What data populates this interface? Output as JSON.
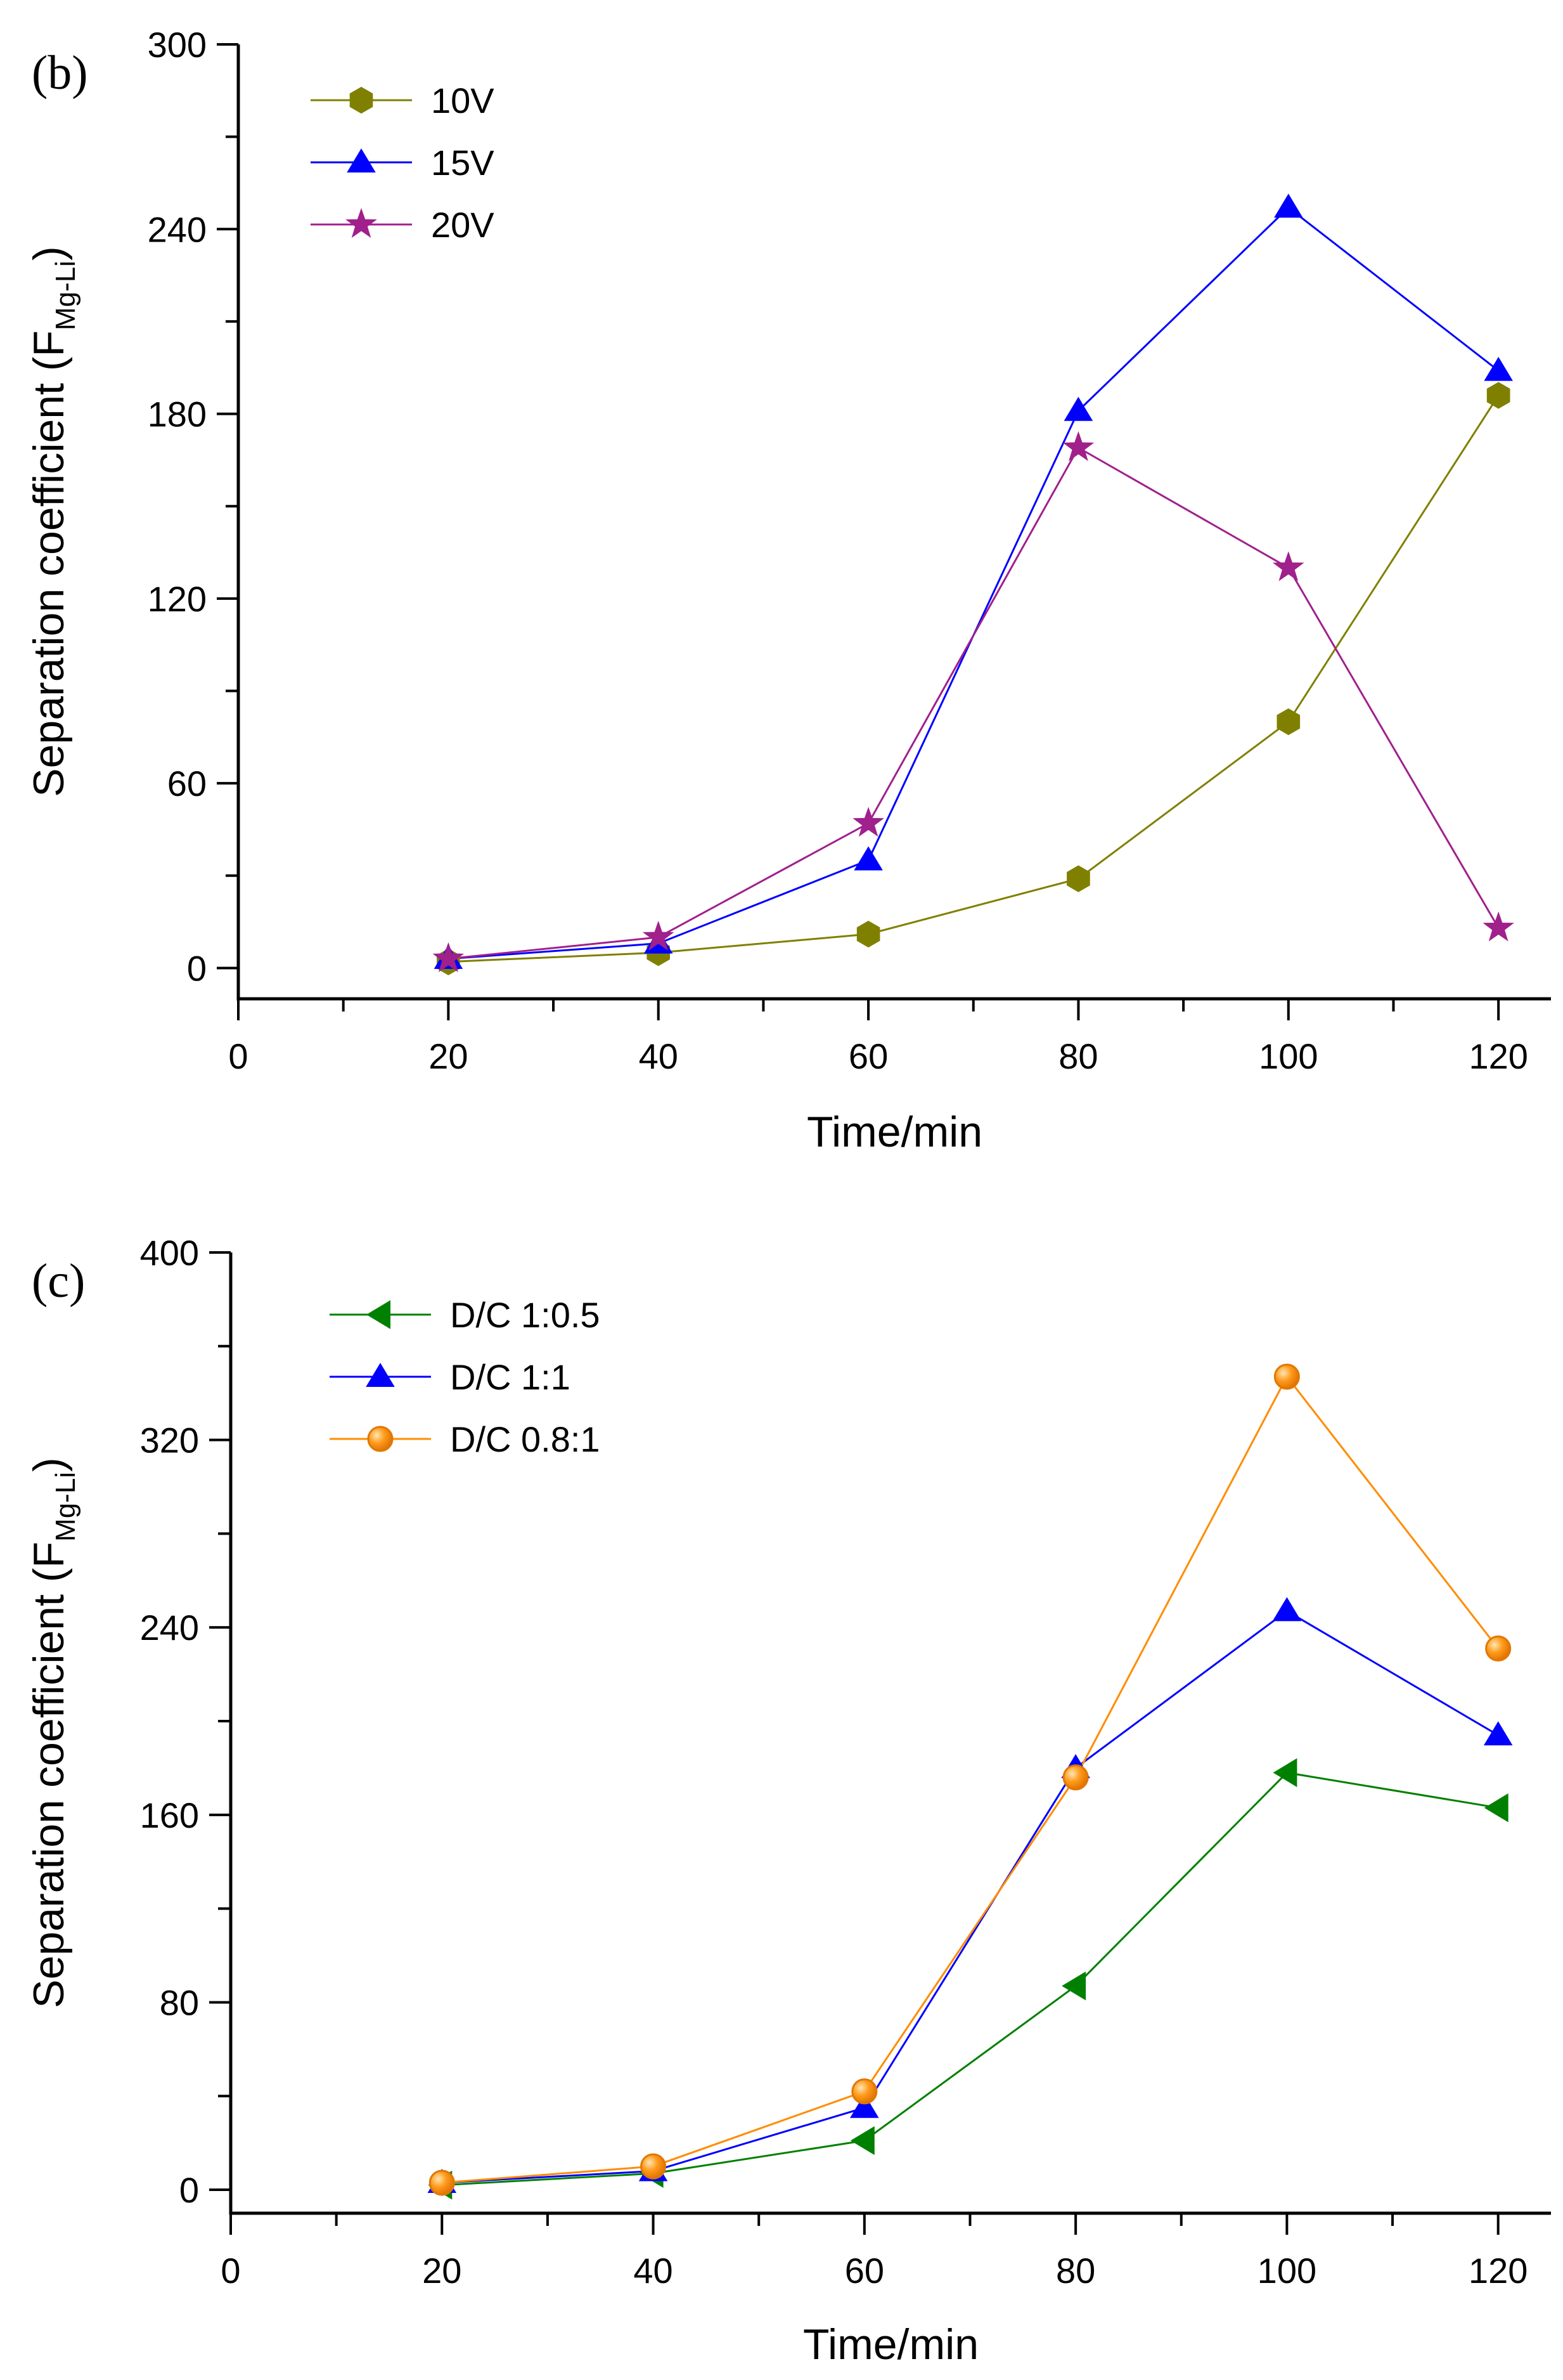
{
  "chart_data": [
    {
      "type": "line",
      "panel_label": "(b)",
      "xlabel": "Time/min",
      "ylabel": "Separation coefficient (F",
      "ylabel_subscript": "Mg-Li",
      "ylabel_close": ")",
      "xlim": [
        0,
        125
      ],
      "ylim": [
        -10,
        300
      ],
      "xticks": [
        0,
        20,
        40,
        60,
        80,
        100,
        120
      ],
      "yticks": [
        0,
        60,
        120,
        180,
        240,
        300
      ],
      "x": [
        20,
        40,
        60,
        80,
        100,
        120
      ],
      "legend_position": "top-left",
      "series": [
        {
          "name": "10V",
          "marker": "hexagon",
          "color": "#808000",
          "values": [
            2,
            5,
            11,
            29,
            80,
            186
          ]
        },
        {
          "name": "15V",
          "marker": "triangle-up",
          "color": "#0000ff",
          "values": [
            3,
            8,
            35,
            181,
            247,
            194
          ]
        },
        {
          "name": "20V",
          "marker": "star",
          "color": "#a0208c",
          "values": [
            3,
            10,
            47,
            169,
            130,
            13
          ]
        }
      ]
    },
    {
      "type": "line",
      "panel_label": "(c)",
      "xlabel": "Time/min",
      "ylabel": "Separation coefficient (F",
      "ylabel_subscript": "Mg-Li",
      "ylabel_close": ")",
      "xlim": [
        0,
        125
      ],
      "ylim": [
        -10,
        400
      ],
      "xticks": [
        0,
        20,
        40,
        60,
        80,
        100,
        120
      ],
      "yticks": [
        0,
        80,
        160,
        240,
        320,
        400
      ],
      "x": [
        20,
        40,
        60,
        80,
        100,
        120
      ],
      "legend_position": "top-left",
      "series": [
        {
          "name": "D/C 1:0.5",
          "marker": "triangle-left",
          "color": "#008000",
          "values": [
            2,
            7,
            21,
            87,
            178,
            163
          ]
        },
        {
          "name": "D/C 1:1",
          "marker": "triangle-up",
          "color": "#0000ff",
          "values": [
            3,
            8,
            35,
            180,
            247,
            194
          ]
        },
        {
          "name": "D/C 0.8:1",
          "marker": "sphere",
          "color": "#ff8c00",
          "values": [
            3,
            10,
            42,
            176,
            347,
            231
          ]
        }
      ]
    }
  ]
}
